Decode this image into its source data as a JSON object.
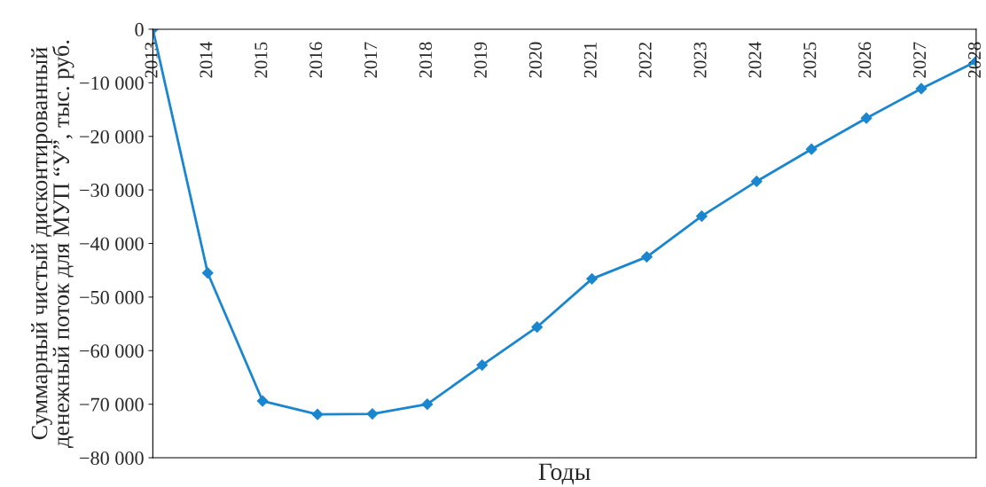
{
  "chart_data": {
    "type": "line",
    "xlabel": "Годы",
    "ylabel": "Суммарный чистый дисконтированный\nденежный поток для МУП “У”, тыс. руб.",
    "categories": [
      "2013",
      "2014",
      "2015",
      "2016",
      "2017",
      "2018",
      "2019",
      "2020",
      "2021",
      "2022",
      "2023",
      "2024",
      "2025",
      "2026",
      "2027",
      "2028"
    ],
    "series": [
      {
        "color": "#1a86cf",
        "values": [
          0,
          -45500,
          -69400,
          -71900,
          -71800,
          -70000,
          -62700,
          -55600,
          -46600,
          -42500,
          -34900,
          -28400,
          -22400,
          -16600,
          -11100,
          -6000
        ]
      }
    ],
    "ylim": [
      -80000,
      0
    ],
    "yticks": [
      {
        "value": 0,
        "label": "0"
      },
      {
        "value": -10000,
        "label": "−10 000"
      },
      {
        "value": -20000,
        "label": "−20 000"
      },
      {
        "value": -30000,
        "label": "−30 000"
      },
      {
        "value": -40000,
        "label": "−40 000"
      },
      {
        "value": -50000,
        "label": "−50 000"
      },
      {
        "value": -60000,
        "label": "−60 000"
      },
      {
        "value": -70000,
        "label": "−70 000"
      },
      {
        "value": -80000,
        "label": "−80 000"
      }
    ],
    "marker": "diamond",
    "line_style": "solid",
    "grid": false,
    "legend": false
  }
}
